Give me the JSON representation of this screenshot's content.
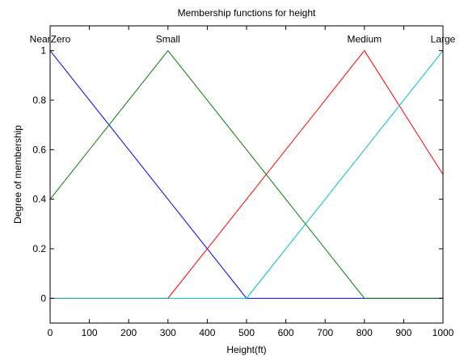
{
  "chart_data": {
    "type": "line",
    "title": "Membership functions for height",
    "xlabel": "Height(ft)",
    "ylabel": "Degree of membership",
    "xlim": [
      0,
      1000
    ],
    "ylim": [
      -0.1,
      1.1
    ],
    "xticks": [
      "0",
      "100",
      "200",
      "300",
      "400",
      "500",
      "600",
      "700",
      "800",
      "900",
      "1000"
    ],
    "yticks": [
      "0",
      "0.2",
      "0.4",
      "0.6",
      "0.8",
      "1"
    ],
    "grid": false,
    "series": [
      {
        "name": "NearZero",
        "color": "#0000ff",
        "label_x": 0,
        "x": [
          0,
          500,
          1000
        ],
        "y": [
          1,
          0,
          0
        ]
      },
      {
        "name": "Small",
        "color": "#008000",
        "label_x": 300,
        "x": [
          0,
          300,
          800,
          1000
        ],
        "y": [
          0.4,
          1,
          0,
          0
        ]
      },
      {
        "name": "Medium",
        "color": "#ff0000",
        "label_x": 800,
        "x": [
          0,
          300,
          800,
          1000
        ],
        "y": [
          0,
          0,
          1,
          0.5
        ]
      },
      {
        "name": "Large",
        "color": "#00bfbf",
        "label_x": 1000,
        "x": [
          0,
          500,
          1000
        ],
        "y": [
          0,
          0,
          1
        ]
      }
    ]
  }
}
